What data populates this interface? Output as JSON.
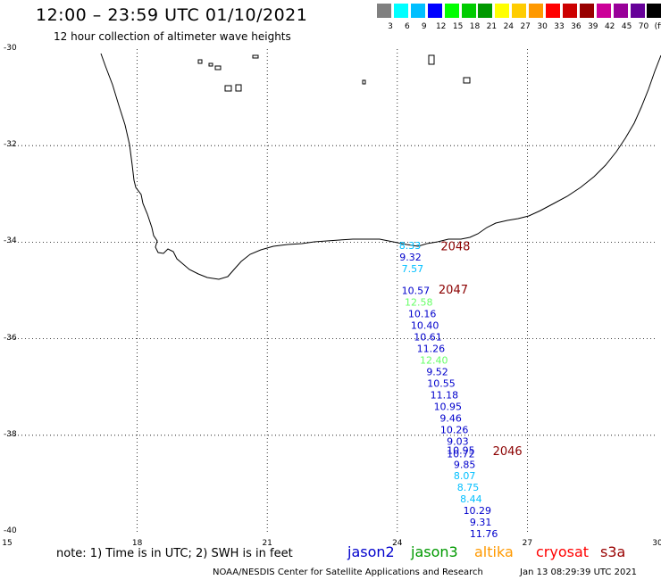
{
  "header": {
    "title": "12:00 – 23:59 UTC 01/10/2021",
    "subtitle": "12 hour collection of altimeter wave heights"
  },
  "legend": {
    "colors": [
      "#808080",
      "#00ffff",
      "#00bfff",
      "#0000ff",
      "#00ff00",
      "#00cc00",
      "#009900",
      "#ffff00",
      "#ffcc00",
      "#ff9900",
      "#ff0000",
      "#cc0000",
      "#990000",
      "#cc0099",
      "#990099",
      "#660099",
      "#000000"
    ],
    "labels": [
      "3",
      "6",
      "9",
      "12",
      "15",
      "18",
      "21",
      "24",
      "27",
      "30",
      "33",
      "36",
      "39",
      "42",
      "45",
      "70",
      "(ft)"
    ]
  },
  "axes": {
    "lat_labels": [
      "-30",
      "-32",
      "-34",
      "-36",
      "-38",
      "-40"
    ],
    "lon_labels": [
      "15",
      "18",
      "21",
      "24",
      "27",
      "30"
    ]
  },
  "passes": [
    {
      "label": "2048",
      "lon": 25.0,
      "lat": -34.08,
      "color": "#8b0000"
    },
    {
      "label": "2047",
      "lon": 24.95,
      "lat": -34.97,
      "color": "#8b0000"
    },
    {
      "label": "2046",
      "lon": 26.2,
      "lat": -38.32,
      "color": "#8b0000"
    }
  ],
  "observations": [
    {
      "swh": "8.33",
      "lon": 24.04,
      "lat": -34.07,
      "color": "#00bfff"
    },
    {
      "swh": "9.32",
      "lon": 24.05,
      "lat": -34.31,
      "color": "#0000cc"
    },
    {
      "swh": "7.57",
      "lon": 24.1,
      "lat": -34.55,
      "color": "#00bfff"
    },
    {
      "swh": "10.57",
      "lon": 24.1,
      "lat": -35.0,
      "color": "#0000cc"
    },
    {
      "swh": "12.58",
      "lon": 24.17,
      "lat": -35.24,
      "color": "#66ff66"
    },
    {
      "swh": "10.16",
      "lon": 24.25,
      "lat": -35.48,
      "color": "#0000cc"
    },
    {
      "swh": "10.40",
      "lon": 24.31,
      "lat": -35.72,
      "color": "#0000cc"
    },
    {
      "swh": "10.61",
      "lon": 24.38,
      "lat": -35.96,
      "color": "#0000cc"
    },
    {
      "swh": "11.26",
      "lon": 24.45,
      "lat": -36.2,
      "color": "#0000cc"
    },
    {
      "swh": "12.40",
      "lon": 24.52,
      "lat": -36.44,
      "color": "#66ff66"
    },
    {
      "swh": "9.52",
      "lon": 24.67,
      "lat": -36.68,
      "color": "#0000cc"
    },
    {
      "swh": "10.55",
      "lon": 24.69,
      "lat": -36.92,
      "color": "#0000cc"
    },
    {
      "swh": "11.18",
      "lon": 24.76,
      "lat": -37.16,
      "color": "#0000cc"
    },
    {
      "swh": "10.95",
      "lon": 24.84,
      "lat": -37.4,
      "color": "#0000cc"
    },
    {
      "swh": "9.46",
      "lon": 24.98,
      "lat": -37.64,
      "color": "#0000cc"
    },
    {
      "swh": "10.26",
      "lon": 24.99,
      "lat": -37.88,
      "color": "#0000cc"
    },
    {
      "swh": "9.03",
      "lon": 25.14,
      "lat": -38.12,
      "color": "#0000cc"
    },
    {
      "swh": "10.95",
      "lon": 25.14,
      "lat": -38.31,
      "color": "#0000cc"
    },
    {
      "swh": "10.72",
      "lon": 25.14,
      "lat": -38.38,
      "color": "#0000cc"
    },
    {
      "swh": "9.85",
      "lon": 25.3,
      "lat": -38.6,
      "color": "#0000cc"
    },
    {
      "swh": "8.07",
      "lon": 25.3,
      "lat": -38.84,
      "color": "#00bfff"
    },
    {
      "swh": "8.75",
      "lon": 25.38,
      "lat": -39.08,
      "color": "#00bfff"
    },
    {
      "swh": "8.44",
      "lon": 25.45,
      "lat": -39.32,
      "color": "#00bfff"
    },
    {
      "swh": "10.29",
      "lon": 25.52,
      "lat": -39.56,
      "color": "#0000cc"
    },
    {
      "swh": "9.31",
      "lon": 25.67,
      "lat": -39.8,
      "color": "#0000cc"
    },
    {
      "swh": "11.76",
      "lon": 25.67,
      "lat": -40.04,
      "color": "#0000cc"
    }
  ],
  "note": "note: 1) Time is in UTC; 2) SWH is in feet",
  "satellites": [
    {
      "name": "jason2",
      "color": "#0000cc"
    },
    {
      "name": "jason3",
      "color": "#009900"
    },
    {
      "name": "altika",
      "color": "#ff9900"
    },
    {
      "name": "cryosat",
      "color": "#ff0000"
    },
    {
      "name": "s3a",
      "color": "#990000"
    }
  ],
  "footer": {
    "credit": "NOAA/NESDIS Center for Satellite Applications and Research",
    "timestamp": "Jan 13 08:29:39 UTC 2021"
  }
}
